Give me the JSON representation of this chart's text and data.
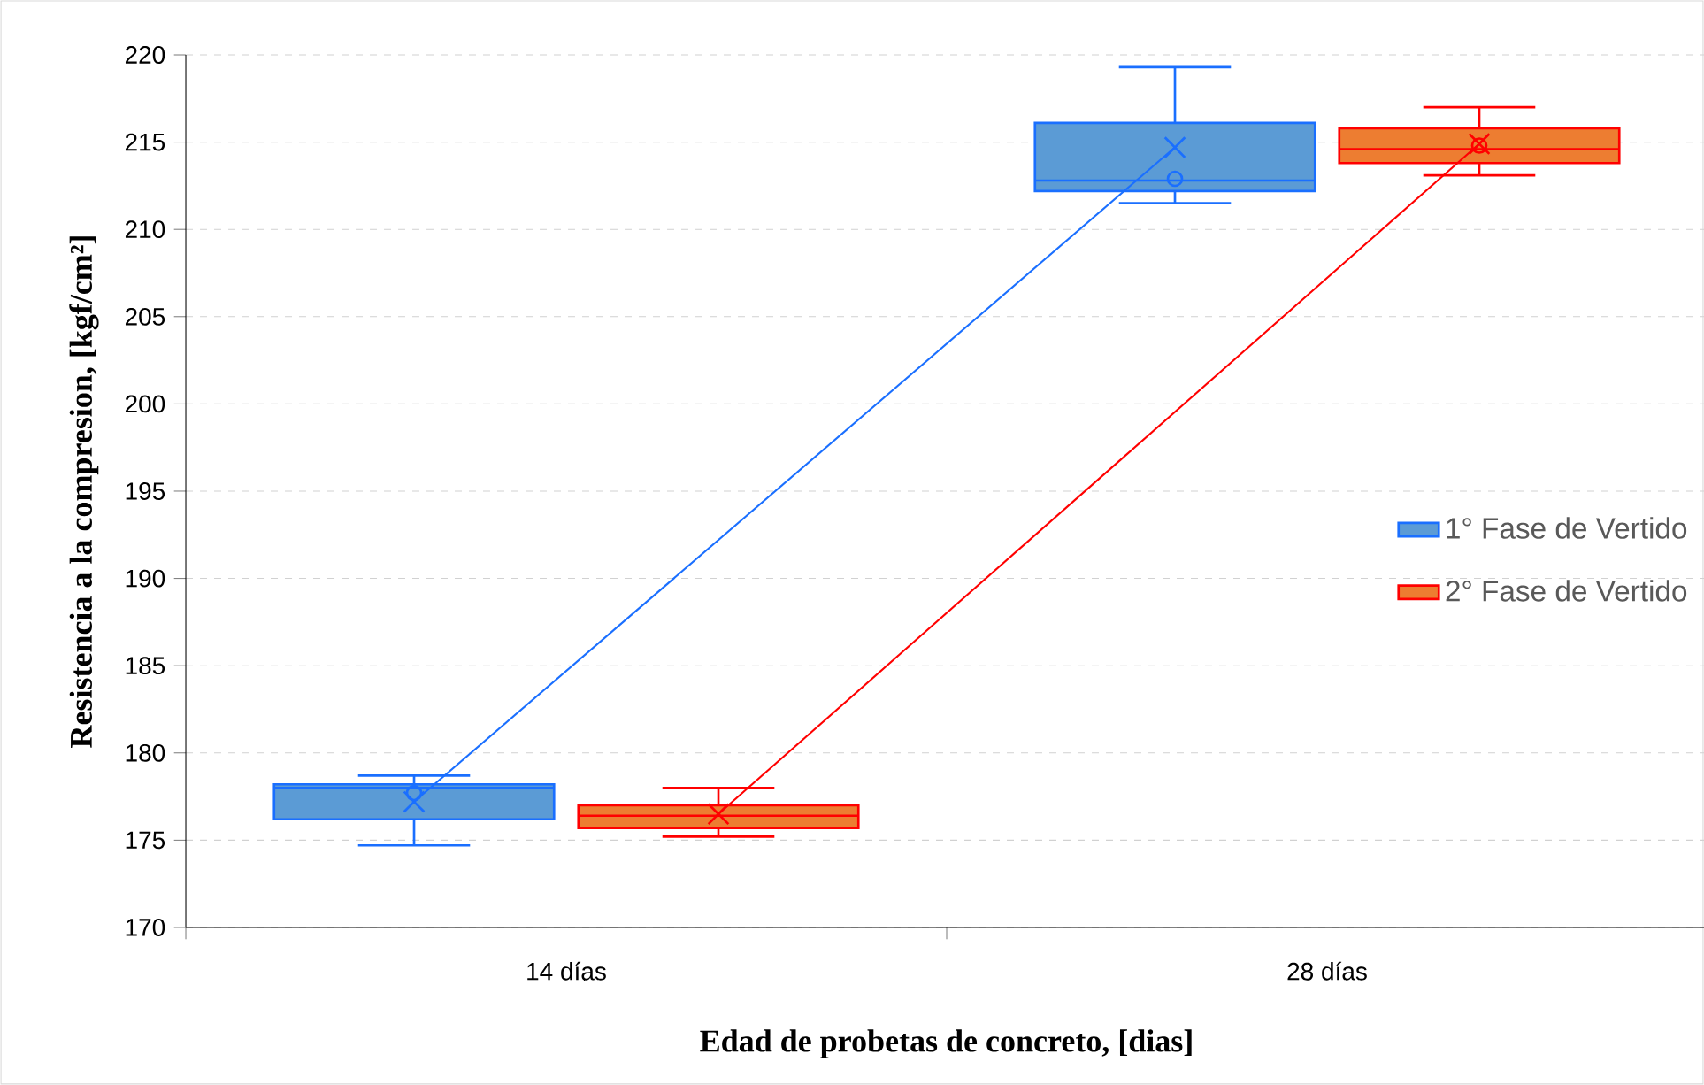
{
  "chart_data": {
    "type": "box",
    "xlabel": "Edad de probetas de concreto, [dias]",
    "ylabel": "Resistencia a la compresion, [kgf/cm²]",
    "categories": [
      "14 días",
      "28 días"
    ],
    "ylim": [
      170,
      220
    ],
    "yticks": [
      170,
      175,
      180,
      185,
      190,
      195,
      200,
      205,
      210,
      215,
      220
    ],
    "grid": "y",
    "legend": "right",
    "series": [
      {
        "name": "1° Fase de Vertido",
        "color": "#5b9bd5",
        "boxes": [
          {
            "low": 174.7,
            "q1": 176.2,
            "median": 178.0,
            "q3": 178.2,
            "high": 178.7,
            "mean": 177.2,
            "outliers": [
              177.7
            ]
          },
          {
            "low": 211.5,
            "q1": 212.2,
            "median": 212.8,
            "q3": 216.1,
            "high": 219.3,
            "mean": 214.7,
            "outliers": [
              212.9
            ]
          }
        ]
      },
      {
        "name": "2° Fase de Vertido",
        "color": "#ed7d31",
        "boxes": [
          {
            "low": 175.2,
            "q1": 175.7,
            "median": 176.4,
            "q3": 177.0,
            "high": 178.0,
            "mean": 176.5
          },
          {
            "low": 213.1,
            "q1": 213.8,
            "median": 214.6,
            "q3": 215.8,
            "high": 217.0,
            "mean": 214.9,
            "outliers": [
              214.8
            ]
          }
        ]
      },
      {
        "type": "line",
        "color": "#1a6fff",
        "values": [
          177.2,
          214.7
        ]
      },
      {
        "type": "line",
        "color": "#ff0000",
        "values": [
          176.5,
          214.9
        ]
      }
    ]
  }
}
